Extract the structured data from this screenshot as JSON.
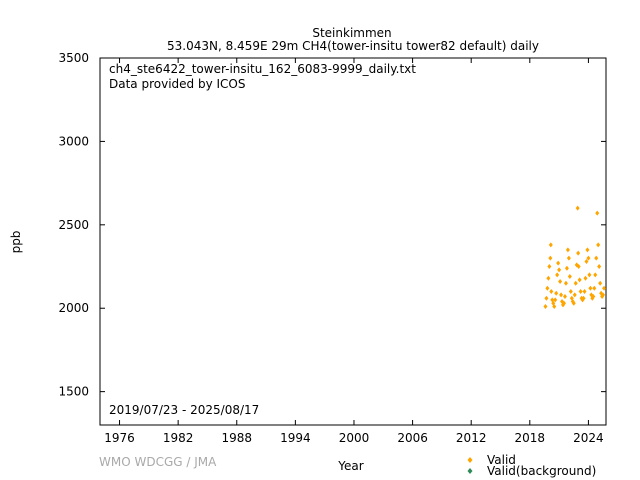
{
  "header": {
    "station": "Steinkimmen",
    "subtitle": "53.043N, 8.459E 29m    CH4(tower-insitu tower82 default) daily"
  },
  "plot": {
    "filename": "ch4_ste6422_tower-insitu_162_6083-9999_daily.txt",
    "provider": "Data provided by ICOS",
    "date_range": "2019/07/23 - 2025/08/17",
    "credit": "WMO WDCGG / JMA"
  },
  "legend": {
    "valid": "Valid",
    "valid_background": "Valid(background)"
  },
  "colors": {
    "valid": "#FFA500",
    "valid_background": "#2E8B57",
    "credit": "#A9A9A9"
  },
  "chart_data": {
    "type": "scatter",
    "xlabel": "Year",
    "ylabel": "ppb",
    "xlim": [
      1974,
      2025.8
    ],
    "ylim": [
      1300,
      3500
    ],
    "xticks": [
      1976,
      1982,
      1988,
      1994,
      2000,
      2006,
      2012,
      2018,
      2024
    ],
    "yticks": [
      1500,
      2000,
      2500,
      3000,
      3500
    ],
    "grid": false,
    "legend_position": "bottom-right",
    "series": [
      {
        "name": "Valid",
        "marker": "diamond",
        "x": [
          2019.6,
          2019.7,
          2019.8,
          2019.9,
          2020.0,
          2020.1,
          2020.15,
          2020.2,
          2020.3,
          2020.4,
          2020.5,
          2020.6,
          2020.7,
          2020.8,
          2020.9,
          2021.0,
          2021.1,
          2021.2,
          2021.3,
          2021.4,
          2021.5,
          2021.6,
          2021.7,
          2021.8,
          2021.9,
          2022.0,
          2022.1,
          2022.2,
          2022.3,
          2022.4,
          2022.5,
          2022.6,
          2022.7,
          2022.8,
          2022.9,
          2022.95,
          2023.0,
          2023.1,
          2023.2,
          2023.3,
          2023.4,
          2023.5,
          2023.6,
          2023.7,
          2023.8,
          2023.9,
          2024.0,
          2024.1,
          2024.2,
          2024.3,
          2024.4,
          2024.5,
          2024.6,
          2024.7,
          2024.8,
          2024.9,
          2025.0,
          2025.1,
          2025.2,
          2025.3,
          2025.4,
          2025.5,
          2025.6
        ],
        "y": [
          2010,
          2060,
          2120,
          2180,
          2250,
          2300,
          2380,
          2100,
          2050,
          2030,
          2010,
          2050,
          2090,
          2200,
          2270,
          2230,
          2160,
          2080,
          2040,
          2020,
          2030,
          2070,
          2150,
          2240,
          2350,
          2300,
          2190,
          2100,
          2060,
          2040,
          2030,
          2080,
          2150,
          2260,
          2600,
          2330,
          2250,
          2170,
          2100,
          2060,
          2050,
          2060,
          2100,
          2180,
          2280,
          2350,
          2300,
          2200,
          2120,
          2080,
          2060,
          2070,
          2120,
          2200,
          2300,
          2570,
          2380,
          2250,
          2150,
          2090,
          2070,
          2080,
          2120
        ]
      },
      {
        "name": "Valid(background)",
        "marker": "diamond",
        "x": [],
        "y": []
      }
    ]
  }
}
